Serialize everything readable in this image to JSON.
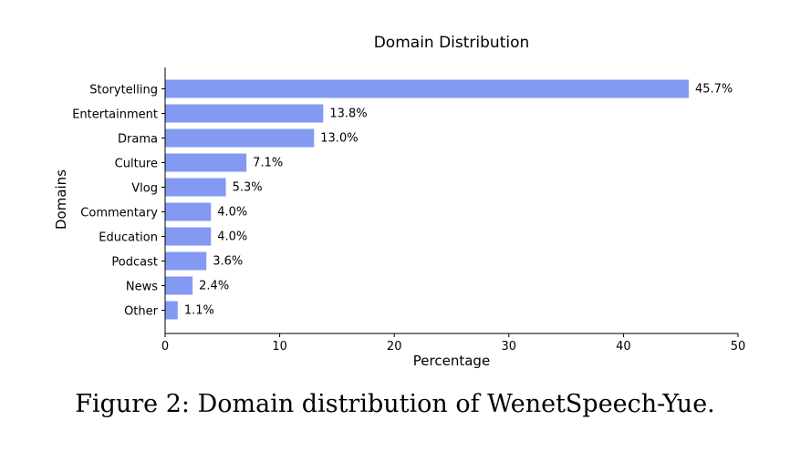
{
  "caption": "Figure 2: Domain distribution of WenetSpeech-Yue.",
  "chart_data": {
    "type": "bar",
    "orientation": "horizontal",
    "title": "Domain Distribution",
    "xlabel": "Percentage",
    "ylabel": "Domains",
    "categories": [
      "Storytelling",
      "Entertainment",
      "Drama",
      "Culture",
      "Vlog",
      "Commentary",
      "Education",
      "Podcast",
      "News",
      "Other"
    ],
    "values": [
      45.7,
      13.8,
      13.0,
      7.1,
      5.3,
      4.0,
      4.0,
      3.6,
      2.4,
      1.1
    ],
    "value_labels": [
      "45.7%",
      "13.8%",
      "13.0%",
      "7.1%",
      "5.3%",
      "4.0%",
      "4.0%",
      "3.6%",
      "2.4%",
      "1.1%"
    ],
    "xlim": [
      0,
      50
    ],
    "xticks": [
      0,
      10,
      20,
      30,
      40,
      50
    ],
    "xtick_labels": [
      "0",
      "10",
      "20",
      "30",
      "40",
      "50"
    ],
    "bar_color": "#8399f2",
    "grid": false,
    "legend": false
  }
}
